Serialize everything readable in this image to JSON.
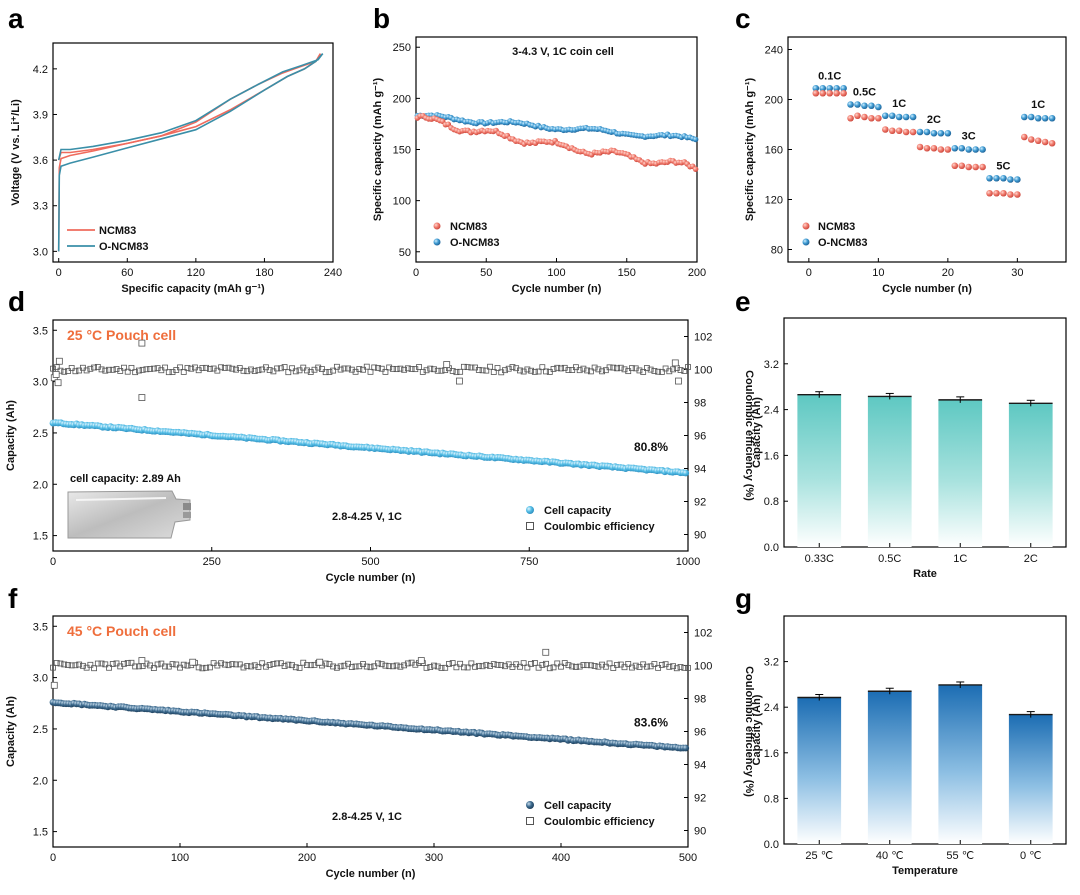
{
  "colors": {
    "red": "#ef6b5d",
    "teal": "#3a8fa8",
    "blue_marker": "#2b86c4",
    "light_blue": "#4ab6e0",
    "ce_gray": "#555555",
    "dark_blue": "#2d5a7b",
    "bar_teal": "#64cbc5",
    "bar_blue": "#1f6fb5",
    "title_orange": "#ef6e3c"
  },
  "chart_data": [
    {
      "id": "a",
      "panel_label": "a",
      "type": "line",
      "xlabel": "Specific capacity (mAh g⁻¹)",
      "ylabel": "Voltage (V vs. Li⁺/Li)",
      "xlim": [
        -5,
        240
      ],
      "ylim": [
        2.93,
        4.37
      ],
      "xticks": [
        "0",
        "60",
        "120",
        "180",
        "240"
      ],
      "yticks": [
        "3.0",
        "3.3",
        "3.6",
        "3.9",
        "4.2"
      ],
      "series": [
        {
          "name": "NCM83",
          "charge": [
            [
              0,
              3.0
            ],
            [
              0.5,
              3.55
            ],
            [
              2,
              3.61
            ],
            [
              10,
              3.63
            ],
            [
              30,
              3.66
            ],
            [
              60,
              3.71
            ],
            [
              90,
              3.76
            ],
            [
              120,
              3.82
            ],
            [
              150,
              3.93
            ],
            [
              180,
              4.06
            ],
            [
              200,
              4.15
            ],
            [
              215,
              4.2
            ],
            [
              225,
              4.25
            ],
            [
              229,
              4.3
            ]
          ],
          "discharge": [
            [
              229,
              4.3
            ],
            [
              225,
              4.25
            ],
            [
              210,
              4.21
            ],
            [
              195,
              4.17
            ],
            [
              175,
              4.1
            ],
            [
              150,
              4.0
            ],
            [
              120,
              3.85
            ],
            [
              90,
              3.76
            ],
            [
              60,
              3.71
            ],
            [
              30,
              3.67
            ],
            [
              10,
              3.65
            ],
            [
              2,
              3.65
            ],
            [
              0,
              3.6
            ]
          ]
        },
        {
          "name": "O-NCM83",
          "charge": [
            [
              0,
              3.0
            ],
            [
              0.5,
              3.5
            ],
            [
              2,
              3.56
            ],
            [
              10,
              3.58
            ],
            [
              30,
              3.62
            ],
            [
              60,
              3.68
            ],
            [
              90,
              3.74
            ],
            [
              120,
              3.8
            ],
            [
              150,
              3.92
            ],
            [
              180,
              4.06
            ],
            [
              200,
              4.15
            ],
            [
              215,
              4.2
            ],
            [
              225,
              4.25
            ],
            [
              231,
              4.3
            ]
          ],
          "discharge": [
            [
              231,
              4.3
            ],
            [
              227,
              4.26
            ],
            [
              212,
              4.22
            ],
            [
              196,
              4.18
            ],
            [
              175,
              4.1
            ],
            [
              150,
              4.0
            ],
            [
              120,
              3.86
            ],
            [
              90,
              3.78
            ],
            [
              60,
              3.73
            ],
            [
              30,
              3.69
            ],
            [
              10,
              3.67
            ],
            [
              2,
              3.67
            ],
            [
              0,
              3.6
            ]
          ]
        }
      ],
      "legend": [
        "NCM83",
        "O-NCM83"
      ]
    },
    {
      "id": "b",
      "panel_label": "b",
      "type": "scatter",
      "xlabel": "Cycle number (n)",
      "ylabel": "Specific capacity (mAh g⁻¹)",
      "annotation": "3-4.3 V, 1C coin cell",
      "xlim": [
        0,
        200
      ],
      "ylim": [
        40,
        260
      ],
      "xticks": [
        "0",
        "50",
        "100",
        "150",
        "200"
      ],
      "yticks": [
        "50",
        "100",
        "150",
        "200",
        "250"
      ],
      "series": [
        {
          "name": "NCM83",
          "start": 182,
          "end": 132
        },
        {
          "name": "O-NCM83",
          "start": 183,
          "end": 160
        }
      ],
      "legend": [
        "NCM83",
        "O-NCM83"
      ]
    },
    {
      "id": "c",
      "panel_label": "c",
      "type": "scatter",
      "xlabel": "Cycle number (n)",
      "ylabel": "Specific capacity (mAh g⁻¹)",
      "xlim": [
        -3,
        37
      ],
      "ylim": [
        70,
        250
      ],
      "xticks": [
        "0",
        "10",
        "20",
        "30"
      ],
      "yticks": [
        "80",
        "120",
        "160",
        "200",
        "240"
      ],
      "rates": [
        "0.1C",
        "0.5C",
        "1C",
        "2C",
        "3C",
        "5C",
        "1C"
      ],
      "series": [
        {
          "name": "NCM83",
          "values": [
            205,
            205,
            205,
            205,
            205,
            185,
            187,
            186,
            185,
            185,
            176,
            175,
            175,
            174,
            174,
            162,
            161,
            161,
            160,
            160,
            147,
            147,
            146,
            146,
            146,
            125,
            125,
            125,
            124,
            124,
            170,
            168,
            167,
            166,
            165
          ]
        },
        {
          "name": "O-NCM83",
          "values": [
            209,
            209,
            209,
            209,
            209,
            196,
            196,
            195,
            195,
            194,
            187,
            187,
            186,
            186,
            186,
            174,
            174,
            173,
            173,
            173,
            161,
            161,
            160,
            160,
            160,
            137,
            137,
            137,
            136,
            136,
            186,
            186,
            185,
            185,
            185
          ]
        }
      ],
      "legend": [
        "NCM83",
        "O-NCM83"
      ]
    },
    {
      "id": "d",
      "panel_label": "d",
      "type": "scatter",
      "title": "25 °C Pouch cell",
      "xlabel": "Cycle number (n)",
      "ylabel": "Capacity (Ah)",
      "y2label": "Coulombic efficiency (%)",
      "xlim": [
        0,
        1000
      ],
      "ylim": [
        1.35,
        3.6
      ],
      "y2lim": [
        89,
        103
      ],
      "xticks": [
        "0",
        "250",
        "500",
        "750",
        "1000"
      ],
      "yticks": [
        "1.5",
        "2.0",
        "2.5",
        "3.0",
        "3.5"
      ],
      "y2ticks": [
        "90",
        "92",
        "94",
        "96",
        "98",
        "100",
        "102"
      ],
      "capacity_start": 2.6,
      "capacity_end": 2.11,
      "ce_value": 100,
      "ce_outliers": [
        [
          2,
          99.5
        ],
        [
          5,
          99.7
        ],
        [
          8,
          99.2
        ],
        [
          10,
          100.5
        ],
        [
          140,
          101.6
        ],
        [
          140,
          98.3
        ],
        [
          620,
          100.3
        ],
        [
          640,
          99.3
        ],
        [
          980,
          100.4
        ],
        [
          985,
          99.3
        ]
      ],
      "retention_label": "80.8%",
      "inset_caption": "cell capacity: 2.89 Ah",
      "conditions": "2.8-4.25 V, 1C",
      "legend": [
        "Cell capacity",
        "Coulombic efficiency"
      ]
    },
    {
      "id": "e",
      "panel_label": "e",
      "type": "bar",
      "xlabel": "Rate",
      "ylabel": "Capacity (Ah)",
      "categories": [
        "0.33C",
        "0.5C",
        "1C",
        "2C"
      ],
      "values": [
        2.66,
        2.63,
        2.57,
        2.51
      ],
      "ylim": [
        0,
        4.0
      ],
      "yticks": [
        "0.0",
        "0.8",
        "1.6",
        "2.4",
        "3.2"
      ]
    },
    {
      "id": "f",
      "panel_label": "f",
      "type": "scatter",
      "title": "45 °C Pouch cell",
      "xlabel": "Cycle number (n)",
      "ylabel": "Capacity (Ah)",
      "y2label": "Coulombic efficiency (%)",
      "xlim": [
        0,
        500
      ],
      "ylim": [
        1.35,
        3.6
      ],
      "y2lim": [
        89,
        103
      ],
      "xticks": [
        "0",
        "100",
        "200",
        "300",
        "400",
        "500"
      ],
      "yticks": [
        "1.5",
        "2.0",
        "2.5",
        "3.0",
        "3.5"
      ],
      "y2ticks": [
        "90",
        "92",
        "94",
        "96",
        "98",
        "100",
        "102"
      ],
      "capacity_start": 2.76,
      "capacity_end": 2.31,
      "ce_value": 100,
      "ce_outliers": [
        [
          1,
          98.8
        ],
        [
          70,
          100.3
        ],
        [
          110,
          100.2
        ],
        [
          210,
          100.2
        ],
        [
          290,
          100.3
        ],
        [
          388,
          100.8
        ]
      ],
      "retention_label": "83.6%",
      "conditions": "2.8-4.25 V, 1C",
      "legend": [
        "Cell capacity",
        "Coulombic efficiency"
      ]
    },
    {
      "id": "g",
      "panel_label": "g",
      "type": "bar",
      "xlabel": "Temperature",
      "ylabel": "Capacity (Ah)",
      "categories": [
        "25 ℃",
        "40 ℃",
        "55 ℃",
        "0 ℃"
      ],
      "values": [
        2.57,
        2.68,
        2.79,
        2.27
      ],
      "ylim": [
        0,
        4.0
      ],
      "yticks": [
        "0.0",
        "0.8",
        "1.6",
        "2.4",
        "3.2"
      ]
    }
  ]
}
